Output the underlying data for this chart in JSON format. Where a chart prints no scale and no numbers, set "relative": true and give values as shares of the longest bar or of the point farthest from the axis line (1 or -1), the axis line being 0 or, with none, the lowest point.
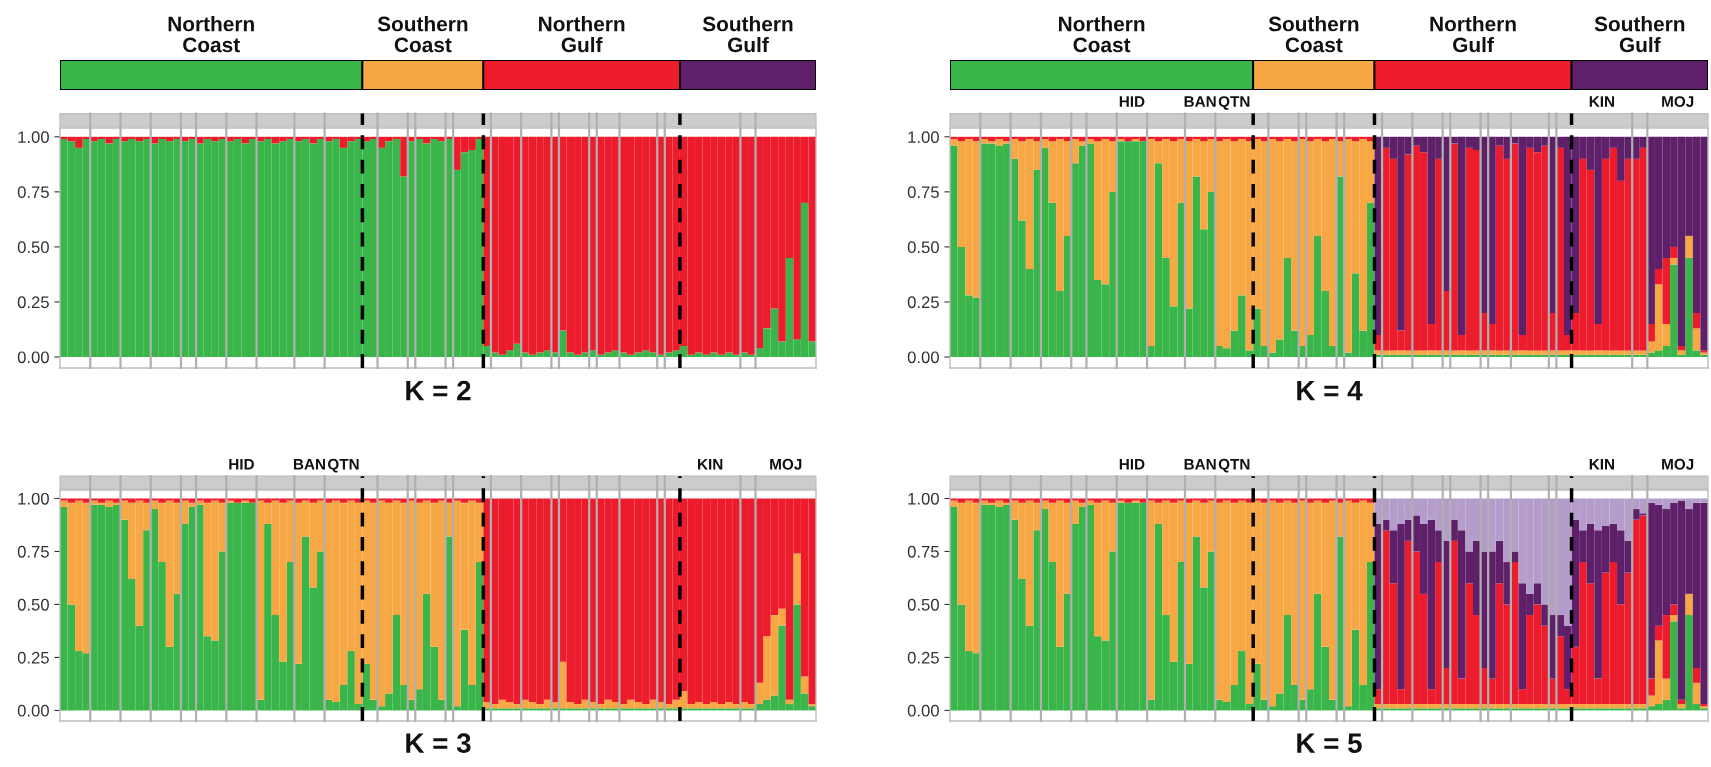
{
  "chart_data": [
    {
      "type": "bar",
      "orientation": "horizontal",
      "stacked": true,
      "relative": true,
      "tick_labels": false,
      "categories": [
        null
      ],
      "series": [
        {
          "name": "Northern\nCoast",
          "color": "#39b54a",
          "values": [
            0.4
          ]
        },
        {
          "name": "Southern\nCoast",
          "color": "#f7a743",
          "values": [
            0.16
          ]
        },
        {
          "name": "Northern\nGulf",
          "color": "#ec1c2d",
          "values": [
            0.26
          ]
        },
        {
          "name": "Southern\nGulf",
          "color": "#5e2069",
          "values": [
            0.18
          ]
        }
      ]
    },
    {
      "type": "bar",
      "orientation": "horizontal",
      "stacked": true,
      "relative": true,
      "tick_labels": false,
      "categories": [
        null
      ],
      "series": [
        {
          "name": "Northern\nCoast",
          "color": "#39b54a",
          "values": [
            0.4
          ]
        },
        {
          "name": "Southern\nCoast",
          "color": "#f7a743",
          "values": [
            0.16
          ]
        },
        {
          "name": "Northern\nGulf",
          "color": "#ec1c2d",
          "values": [
            0.26
          ]
        },
        {
          "name": "Southern\nGulf",
          "color": "#5e2069",
          "values": [
            0.18
          ]
        }
      ]
    },
    {
      "type": "bar",
      "stacked": true,
      "title": "K = 2",
      "tick_labels": "y",
      "ylim": [
        -0.05,
        1.04
      ],
      "yticks": [
        {
          "value": 0,
          "label": "0.00"
        },
        {
          "value": 0.25,
          "label": "0.25"
        },
        {
          "value": 0.5,
          "label": "0.50"
        },
        {
          "value": 0.75,
          "label": "0.75"
        },
        {
          "value": 1,
          "label": "1.00"
        }
      ],
      "categories": [
        null,
        null,
        null,
        null,
        null,
        null,
        null,
        null,
        null,
        null,
        null,
        null,
        null,
        null,
        null,
        null,
        null,
        null,
        null,
        null,
        null,
        null,
        null,
        null,
        null,
        null,
        null,
        null,
        null,
        null,
        null,
        null,
        null,
        null,
        null,
        null,
        null,
        null,
        null,
        null,
        null,
        null,
        null,
        null,
        null,
        null,
        null,
        null,
        null,
        null,
        null,
        null,
        null,
        null,
        null,
        null,
        null,
        null,
        null,
        null,
        null,
        null,
        null,
        null,
        null,
        null,
        null,
        null,
        null,
        null,
        null,
        null,
        null,
        null,
        null,
        null,
        null,
        null,
        null,
        null,
        null,
        null,
        null,
        null,
        null,
        null,
        null,
        null,
        null,
        null,
        null,
        null,
        null,
        null,
        null,
        null,
        null,
        null,
        null,
        null
      ],
      "series": [
        {
          "color": "#39b54a",
          "values": [
            0.99,
            0.98,
            0.95,
            0.99,
            0.98,
            0.99,
            0.97,
            0.99,
            0.98,
            0.99,
            0.98,
            0.99,
            0.97,
            0.99,
            0.98,
            0.99,
            0.98,
            0.99,
            0.97,
            0.99,
            0.98,
            0.99,
            0.98,
            0.99,
            0.97,
            0.99,
            0.98,
            0.99,
            0.97,
            0.98,
            0.99,
            0.98,
            0.99,
            0.97,
            0.99,
            0.98,
            0.99,
            0.95,
            0.98,
            0.99,
            0.98,
            0.99,
            0.95,
            0.98,
            0.99,
            0.82,
            0.98,
            0.99,
            0.97,
            0.99,
            0.98,
            0.99,
            0.85,
            0.93,
            0.94,
            0.99,
            0.05,
            0.02,
            0.01,
            0.03,
            0.06,
            0.02,
            0.01,
            0.02,
            0.03,
            0.02,
            0.12,
            0.02,
            0.01,
            0.02,
            0.03,
            0.01,
            0.02,
            0.03,
            0.02,
            0.01,
            0.02,
            0.03,
            0.02,
            0.01,
            0.02,
            0.03,
            0.05,
            0.01,
            0.02,
            0.01,
            0.02,
            0.01,
            0.02,
            0.01,
            0.02,
            0.01,
            0.04,
            0.13,
            0.22,
            0.07,
            0.45,
            0.08,
            0.7,
            0.07
          ]
        },
        {
          "color": "#ec1c2d",
          "values": [
            0.01,
            0.02,
            0.05,
            0.01,
            0.02,
            0.01,
            0.03,
            0.01,
            0.02,
            0.01,
            0.02,
            0.01,
            0.03,
            0.01,
            0.02,
            0.01,
            0.02,
            0.01,
            0.03,
            0.01,
            0.02,
            0.01,
            0.02,
            0.01,
            0.03,
            0.01,
            0.02,
            0.01,
            0.03,
            0.02,
            0.01,
            0.02,
            0.01,
            0.03,
            0.01,
            0.02,
            0.01,
            0.05,
            0.02,
            0.01,
            0.02,
            0.01,
            0.05,
            0.02,
            0.01,
            0.18,
            0.02,
            0.01,
            0.03,
            0.01,
            0.02,
            0.01,
            0.15,
            0.07,
            0.06,
            0.01,
            0.95,
            0.98,
            0.99,
            0.97,
            0.94,
            0.98,
            0.99,
            0.98,
            0.97,
            0.98,
            0.88,
            0.98,
            0.99,
            0.98,
            0.97,
            0.99,
            0.98,
            0.97,
            0.98,
            0.99,
            0.98,
            0.97,
            0.98,
            0.99,
            0.98,
            0.97,
            0.95,
            0.99,
            0.98,
            0.99,
            0.98,
            0.99,
            0.98,
            0.99,
            0.98,
            0.99,
            0.96,
            0.87,
            0.78,
            0.93,
            0.55,
            0.92,
            0.3,
            0.93
          ]
        }
      ]
    },
    {
      "type": "bar",
      "stacked": true,
      "title": "K = 4",
      "tick_labels": "y",
      "ylim": [
        -0.05,
        1.04
      ],
      "yticks": [
        {
          "value": 0,
          "label": "0.00"
        },
        {
          "value": 0.25,
          "label": "0.25"
        },
        {
          "value": 0.5,
          "label": "0.50"
        },
        {
          "value": 0.75,
          "label": "0.75"
        },
        {
          "value": 1,
          "label": "1.00"
        }
      ],
      "categories": [
        null,
        null,
        null,
        null,
        null,
        null,
        null,
        null,
        null,
        null,
        null,
        null,
        null,
        null,
        null,
        null,
        null,
        null,
        null,
        null,
        null,
        null,
        null,
        null,
        null,
        null,
        null,
        null,
        null,
        null,
        null,
        null,
        null,
        null,
        null,
        null,
        null,
        null,
        null,
        null,
        null,
        null,
        null,
        null,
        null,
        null,
        null,
        null,
        null,
        null,
        null,
        null,
        null,
        null,
        null,
        null,
        null,
        null,
        null,
        null,
        null,
        null,
        null,
        null,
        null,
        null,
        null,
        null,
        null,
        null,
        null,
        null,
        null,
        null,
        null,
        null,
        null,
        null,
        null,
        null,
        null,
        null,
        null,
        null,
        null,
        null,
        null,
        null,
        null,
        null,
        null,
        null,
        null,
        null,
        null,
        null,
        null,
        null,
        null,
        null
      ],
      "series": [
        {
          "color": "#39b54a",
          "values": [
            0.96,
            0.5,
            0.28,
            0.27,
            0.97,
            0.97,
            0.96,
            0.97,
            0.9,
            0.62,
            0.4,
            0.85,
            0.95,
            0.7,
            0.3,
            0.55,
            0.88,
            0.96,
            0.97,
            0.35,
            0.33,
            0.75,
            0.98,
            0.98,
            0.98,
            0.98,
            0.05,
            0.88,
            0.45,
            0.23,
            0.7,
            0.22,
            0.82,
            0.58,
            0.75,
            0.05,
            0.04,
            0.12,
            0.28,
            0.03,
            0.22,
            0.05,
            0.02,
            0.08,
            0.45,
            0.12,
            0.05,
            0.1,
            0.55,
            0.3,
            0.05,
            0.82,
            0.02,
            0.38,
            0.12,
            0.7,
            0.01,
            0.01,
            0.01,
            0.01,
            0.01,
            0.01,
            0.01,
            0.01,
            0.01,
            0.01,
            0.01,
            0.01,
            0.01,
            0.01,
            0.01,
            0.01,
            0.01,
            0.01,
            0.01,
            0.01,
            0.01,
            0.01,
            0.01,
            0.01,
            0.01,
            0.01,
            0.01,
            0.01,
            0.01,
            0.01,
            0.01,
            0.01,
            0.01,
            0.01,
            0.01,
            0.01,
            0.02,
            0.03,
            0.05,
            0.42,
            0.01,
            0.45,
            0.03,
            0.01
          ]
        },
        {
          "color": "#f7a743",
          "values": [
            0.03,
            0.48,
            0.71,
            0.71,
            0.02,
            0.01,
            0.03,
            0.01,
            0.09,
            0.36,
            0.59,
            0.13,
            0.04,
            0.28,
            0.69,
            0.43,
            0.11,
            0.02,
            0.02,
            0.63,
            0.66,
            0.23,
            0.01,
            0,
            0.01,
            0,
            0.94,
            0.1,
            0.54,
            0.75,
            0.29,
            0.76,
            0.17,
            0.4,
            0.24,
            0.93,
            0.95,
            0.86,
            0.71,
            0.95,
            0.77,
            0.93,
            0.97,
            0.9,
            0.54,
            0.86,
            0.94,
            0.88,
            0.44,
            0.68,
            0.94,
            0.16,
            0.97,
            0.6,
            0.87,
            0.28,
            0.02,
            0.02,
            0.02,
            0.02,
            0.02,
            0.02,
            0.02,
            0.02,
            0.02,
            0.02,
            0.02,
            0.02,
            0.02,
            0.02,
            0.02,
            0.02,
            0.02,
            0.02,
            0.02,
            0.02,
            0.02,
            0.02,
            0.02,
            0.02,
            0.02,
            0.02,
            0.02,
            0.02,
            0.02,
            0.02,
            0.02,
            0.02,
            0.02,
            0.02,
            0.02,
            0.02,
            0.05,
            0.3,
            0.1,
            0.03,
            0.02,
            0.1,
            0.1,
            0.01
          ]
        },
        {
          "color": "#ec1c2d",
          "values": [
            0.01,
            0.02,
            0.01,
            0.02,
            0.01,
            0.02,
            0.01,
            0.02,
            0.01,
            0.02,
            0.01,
            0.02,
            0.01,
            0.02,
            0.01,
            0.02,
            0.01,
            0.02,
            0.01,
            0.02,
            0.01,
            0.02,
            0.01,
            0.02,
            0.01,
            0.02,
            0.01,
            0.02,
            0.01,
            0.02,
            0.01,
            0.02,
            0.01,
            0.02,
            0.01,
            0.02,
            0.01,
            0.02,
            0.01,
            0.02,
            0.01,
            0.02,
            0.01,
            0.02,
            0.01,
            0.02,
            0.01,
            0.02,
            0.01,
            0.02,
            0.01,
            0.02,
            0.01,
            0.02,
            0.01,
            0.02,
            0.07,
            0.92,
            0.87,
            0.09,
            0.89,
            0.93,
            0.9,
            0.12,
            0.87,
            0.27,
            0.94,
            0.07,
            0.92,
            0.91,
            0.17,
            0.12,
            0.93,
            0.87,
            0.94,
            0.07,
            0.92,
            0.9,
            0.93,
            0.17,
            0.92,
            0.07,
            0.17,
            0.87,
            0.82,
            0.12,
            0.87,
            0.92,
            0.77,
            0.87,
            0.87,
            0.92,
            0.08,
            0.07,
            0.3,
            0.05,
            0.02,
            0,
            0.07,
            0.01
          ]
        },
        {
          "color": "#5e2069",
          "values": [
            0,
            0,
            0,
            0,
            0,
            0,
            0,
            0,
            0,
            0,
            0,
            0,
            0,
            0,
            0,
            0,
            0,
            0,
            0,
            0,
            0,
            0,
            0,
            0,
            0,
            0,
            0,
            0,
            0,
            0,
            0,
            0,
            0,
            0,
            0,
            0,
            0,
            0,
            0,
            0,
            0,
            0,
            0,
            0,
            0,
            0,
            0,
            0,
            0,
            0,
            0,
            0,
            0,
            0,
            0,
            0,
            0.9,
            0.05,
            0.1,
            0.88,
            0.08,
            0.04,
            0.07,
            0.85,
            0.1,
            0.7,
            0.03,
            0.9,
            0.05,
            0.06,
            0.8,
            0.85,
            0.04,
            0.1,
            0.03,
            0.9,
            0.05,
            0.07,
            0.04,
            0.8,
            0.05,
            0.9,
            0.8,
            0.1,
            0.15,
            0.85,
            0.1,
            0.05,
            0.2,
            0.1,
            0.1,
            0.05,
            0.85,
            0.6,
            0.55,
            0.5,
            0.95,
            0.45,
            0.8,
            0.97
          ]
        }
      ],
      "annotations": [
        "HID",
        "BAN",
        "QTN",
        "KIN",
        "MOJ"
      ]
    },
    {
      "type": "bar",
      "stacked": true,
      "title": "K = 3",
      "tick_labels": "y",
      "ylim": [
        -0.05,
        1.04
      ],
      "yticks": [
        {
          "value": 0,
          "label": "0.00"
        },
        {
          "value": 0.25,
          "label": "0.25"
        },
        {
          "value": 0.5,
          "label": "0.50"
        },
        {
          "value": 0.75,
          "label": "0.75"
        },
        {
          "value": 1,
          "label": "1.00"
        }
      ],
      "categories": [
        null,
        null,
        null,
        null,
        null,
        null,
        null,
        null,
        null,
        null,
        null,
        null,
        null,
        null,
        null,
        null,
        null,
        null,
        null,
        null,
        null,
        null,
        null,
        null,
        null,
        null,
        null,
        null,
        null,
        null,
        null,
        null,
        null,
        null,
        null,
        null,
        null,
        null,
        null,
        null,
        null,
        null,
        null,
        null,
        null,
        null,
        null,
        null,
        null,
        null,
        null,
        null,
        null,
        null,
        null,
        null,
        null,
        null,
        null,
        null,
        null,
        null,
        null,
        null,
        null,
        null,
        null,
        null,
        null,
        null,
        null,
        null,
        null,
        null,
        null,
        null,
        null,
        null,
        null,
        null,
        null,
        null,
        null,
        null,
        null,
        null,
        null,
        null,
        null,
        null,
        null,
        null,
        null,
        null,
        null,
        null,
        null,
        null,
        null,
        null
      ],
      "series": [
        {
          "color": "#39b54a",
          "values": [
            0.96,
            0.5,
            0.28,
            0.27,
            0.97,
            0.97,
            0.96,
            0.97,
            0.9,
            0.62,
            0.4,
            0.85,
            0.95,
            0.7,
            0.3,
            0.55,
            0.88,
            0.96,
            0.97,
            0.35,
            0.33,
            0.75,
            0.98,
            0.98,
            0.98,
            0.98,
            0.05,
            0.88,
            0.45,
            0.23,
            0.7,
            0.22,
            0.82,
            0.58,
            0.75,
            0.05,
            0.04,
            0.12,
            0.28,
            0.03,
            0.22,
            0.05,
            0.02,
            0.08,
            0.45,
            0.12,
            0.05,
            0.1,
            0.55,
            0.3,
            0.05,
            0.82,
            0.02,
            0.38,
            0.12,
            0.7,
            0.01,
            0.01,
            0.01,
            0.01,
            0.01,
            0.01,
            0.01,
            0.01,
            0.01,
            0.01,
            0.01,
            0.01,
            0.01,
            0.01,
            0.01,
            0.01,
            0.01,
            0.01,
            0.01,
            0.01,
            0.01,
            0.01,
            0.01,
            0.01,
            0.01,
            0.01,
            0.01,
            0.01,
            0.01,
            0.01,
            0.01,
            0.01,
            0.01,
            0.01,
            0.01,
            0.01,
            0.03,
            0.05,
            0.07,
            0.4,
            0.03,
            0.5,
            0.08,
            0.02
          ]
        },
        {
          "color": "#f7a743",
          "values": [
            0.03,
            0.48,
            0.71,
            0.71,
            0.02,
            0.01,
            0.03,
            0.01,
            0.09,
            0.36,
            0.59,
            0.13,
            0.04,
            0.28,
            0.69,
            0.43,
            0.11,
            0.02,
            0.02,
            0.63,
            0.66,
            0.23,
            0.01,
            0,
            0.01,
            0,
            0.94,
            0.1,
            0.54,
            0.75,
            0.29,
            0.76,
            0.17,
            0.4,
            0.24,
            0.93,
            0.95,
            0.86,
            0.71,
            0.95,
            0.77,
            0.93,
            0.97,
            0.9,
            0.54,
            0.86,
            0.94,
            0.88,
            0.44,
            0.68,
            0.94,
            0.16,
            0.97,
            0.6,
            0.87,
            0.28,
            0.03,
            0.02,
            0.04,
            0.03,
            0.02,
            0.04,
            0.03,
            0.02,
            0.04,
            0.03,
            0.22,
            0.03,
            0.02,
            0.04,
            0.03,
            0.02,
            0.04,
            0.03,
            0.02,
            0.04,
            0.03,
            0.02,
            0.04,
            0.03,
            0.02,
            0.04,
            0.08,
            0.02,
            0.03,
            0.02,
            0.03,
            0.02,
            0.03,
            0.02,
            0.03,
            0.02,
            0.1,
            0.3,
            0.38,
            0.08,
            0.02,
            0.24,
            0.08,
            0.01
          ]
        },
        {
          "color": "#ec1c2d",
          "values": [
            0.01,
            0.02,
            0.01,
            0.02,
            0.01,
            0.02,
            0.01,
            0.02,
            0.01,
            0.02,
            0.01,
            0.02,
            0.01,
            0.02,
            0.01,
            0.02,
            0.01,
            0.02,
            0.01,
            0.02,
            0.01,
            0.02,
            0.01,
            0.02,
            0.01,
            0.02,
            0.01,
            0.02,
            0.01,
            0.02,
            0.01,
            0.02,
            0.01,
            0.02,
            0.01,
            0.02,
            0.01,
            0.02,
            0.01,
            0.02,
            0.01,
            0.02,
            0.01,
            0.02,
            0.01,
            0.02,
            0.01,
            0.02,
            0.01,
            0.02,
            0.01,
            0.02,
            0.01,
            0.02,
            0.01,
            0.02,
            0.96,
            0.97,
            0.95,
            0.96,
            0.97,
            0.95,
            0.96,
            0.97,
            0.95,
            0.96,
            0.77,
            0.96,
            0.97,
            0.95,
            0.96,
            0.97,
            0.95,
            0.96,
            0.97,
            0.95,
            0.96,
            0.97,
            0.95,
            0.96,
            0.97,
            0.95,
            0.91,
            0.97,
            0.96,
            0.97,
            0.96,
            0.97,
            0.96,
            0.97,
            0.96,
            0.97,
            0.87,
            0.65,
            0.55,
            0.52,
            0.95,
            0.26,
            0.84,
            0.97
          ]
        }
      ],
      "annotations": [
        "HID",
        "BAN",
        "QTN",
        "KIN",
        "MOJ"
      ]
    },
    {
      "type": "bar",
      "stacked": true,
      "title": "K = 5",
      "tick_labels": "y",
      "ylim": [
        -0.05,
        1.04
      ],
      "yticks": [
        {
          "value": 0,
          "label": "0.00"
        },
        {
          "value": 0.25,
          "label": "0.25"
        },
        {
          "value": 0.5,
          "label": "0.50"
        },
        {
          "value": 0.75,
          "label": "0.75"
        },
        {
          "value": 1,
          "label": "1.00"
        }
      ],
      "categories": [
        null,
        null,
        null,
        null,
        null,
        null,
        null,
        null,
        null,
        null,
        null,
        null,
        null,
        null,
        null,
        null,
        null,
        null,
        null,
        null,
        null,
        null,
        null,
        null,
        null,
        null,
        null,
        null,
        null,
        null,
        null,
        null,
        null,
        null,
        null,
        null,
        null,
        null,
        null,
        null,
        null,
        null,
        null,
        null,
        null,
        null,
        null,
        null,
        null,
        null,
        null,
        null,
        null,
        null,
        null,
        null,
        null,
        null,
        null,
        null,
        null,
        null,
        null,
        null,
        null,
        null,
        null,
        null,
        null,
        null,
        null,
        null,
        null,
        null,
        null,
        null,
        null,
        null,
        null,
        null,
        null,
        null,
        null,
        null,
        null,
        null,
        null,
        null,
        null,
        null,
        null,
        null,
        null,
        null,
        null,
        null,
        null,
        null,
        null,
        null
      ],
      "series": [
        {
          "color": "#39b54a",
          "values": [
            0.96,
            0.5,
            0.28,
            0.27,
            0.97,
            0.97,
            0.96,
            0.97,
            0.9,
            0.62,
            0.4,
            0.85,
            0.95,
            0.7,
            0.3,
            0.55,
            0.88,
            0.96,
            0.97,
            0.35,
            0.33,
            0.75,
            0.98,
            0.98,
            0.98,
            0.98,
            0.05,
            0.88,
            0.45,
            0.23,
            0.7,
            0.22,
            0.82,
            0.58,
            0.75,
            0.05,
            0.04,
            0.12,
            0.28,
            0.03,
            0.22,
            0.05,
            0.02,
            0.08,
            0.45,
            0.12,
            0.05,
            0.1,
            0.55,
            0.3,
            0.05,
            0.82,
            0.02,
            0.38,
            0.12,
            0.7,
            0.01,
            0.01,
            0.01,
            0.01,
            0.01,
            0.01,
            0.01,
            0.01,
            0.01,
            0.01,
            0.01,
            0.01,
            0.01,
            0.01,
            0.01,
            0.01,
            0.01,
            0.01,
            0.01,
            0.01,
            0.01,
            0.01,
            0.01,
            0.01,
            0.01,
            0.01,
            0.01,
            0.01,
            0.01,
            0.01,
            0.01,
            0.01,
            0.01,
            0.01,
            0.01,
            0.01,
            0.02,
            0.03,
            0.05,
            0.42,
            0.01,
            0.45,
            0.03,
            0.01
          ]
        },
        {
          "color": "#f7a743",
          "values": [
            0.03,
            0.48,
            0.71,
            0.71,
            0.02,
            0.01,
            0.03,
            0.01,
            0.09,
            0.36,
            0.59,
            0.13,
            0.04,
            0.28,
            0.69,
            0.43,
            0.11,
            0.02,
            0.02,
            0.63,
            0.66,
            0.23,
            0.01,
            0,
            0.01,
            0,
            0.94,
            0.1,
            0.54,
            0.75,
            0.29,
            0.76,
            0.17,
            0.4,
            0.24,
            0.93,
            0.95,
            0.86,
            0.71,
            0.95,
            0.77,
            0.93,
            0.97,
            0.9,
            0.54,
            0.86,
            0.94,
            0.88,
            0.44,
            0.68,
            0.94,
            0.16,
            0.97,
            0.6,
            0.87,
            0.28,
            0.02,
            0.02,
            0.02,
            0.02,
            0.02,
            0.02,
            0.02,
            0.02,
            0.02,
            0.02,
            0.02,
            0.02,
            0.02,
            0.02,
            0.02,
            0.02,
            0.02,
            0.02,
            0.02,
            0.02,
            0.02,
            0.02,
            0.02,
            0.02,
            0.02,
            0.02,
            0.02,
            0.02,
            0.02,
            0.02,
            0.02,
            0.02,
            0.02,
            0.02,
            0.02,
            0.02,
            0.05,
            0.3,
            0.1,
            0.03,
            0.02,
            0.1,
            0.1,
            0.01
          ]
        },
        {
          "color": "#ec1c2d",
          "values": [
            0.01,
            0.02,
            0.01,
            0.02,
            0.01,
            0.02,
            0.01,
            0.02,
            0.01,
            0.02,
            0.01,
            0.02,
            0.01,
            0.02,
            0.01,
            0.02,
            0.01,
            0.02,
            0.01,
            0.02,
            0.01,
            0.02,
            0.01,
            0.02,
            0.01,
            0.02,
            0.01,
            0.02,
            0.01,
            0.02,
            0.01,
            0.02,
            0.01,
            0.02,
            0.01,
            0.02,
            0.01,
            0.02,
            0.01,
            0.02,
            0.01,
            0.02,
            0.01,
            0.02,
            0.01,
            0.02,
            0.01,
            0.02,
            0.01,
            0.02,
            0.01,
            0.02,
            0.01,
            0.02,
            0.01,
            0.02,
            0.07,
            0.82,
            0.57,
            0.07,
            0.77,
            0.72,
            0.52,
            0.07,
            0.67,
            0.17,
            0.77,
            0.12,
            0.57,
            0.42,
            0.17,
            0.12,
            0.57,
            0.47,
            0.67,
            0.07,
            0.42,
            0.47,
            0.37,
            0.12,
            0.32,
            0.07,
            0.27,
            0.67,
            0.57,
            0.12,
            0.62,
            0.67,
            0.47,
            0.62,
            0.87,
            0.89,
            0.08,
            0.07,
            0.3,
            0.05,
            0.02,
            0,
            0.07,
            0.01
          ]
        },
        {
          "color": "#5e2069",
          "values": [
            0,
            0,
            0,
            0,
            0,
            0,
            0,
            0,
            0,
            0,
            0,
            0,
            0,
            0,
            0,
            0,
            0,
            0,
            0,
            0,
            0,
            0,
            0,
            0,
            0,
            0,
            0,
            0,
            0,
            0,
            0,
            0,
            0,
            0,
            0,
            0,
            0,
            0,
            0,
            0,
            0,
            0,
            0,
            0,
            0,
            0,
            0,
            0,
            0,
            0,
            0,
            0,
            0,
            0,
            0,
            0,
            0.78,
            0.05,
            0.25,
            0.78,
            0.1,
            0.17,
            0.33,
            0.8,
            0.15,
            0.6,
            0.1,
            0.7,
            0.15,
            0.35,
            0.55,
            0.6,
            0.2,
            0.2,
            0.05,
            0.5,
            0.1,
            0.1,
            0.1,
            0.3,
            0.1,
            0.3,
            0.6,
            0.15,
            0.28,
            0.7,
            0.22,
            0.18,
            0.35,
            0.15,
            0.05,
            0.01,
            0.83,
            0.57,
            0.5,
            0.48,
            0.94,
            0.4,
            0.78,
            0.95
          ]
        },
        {
          "color": "#b49ccb",
          "values": [
            0,
            0,
            0,
            0,
            0,
            0,
            0,
            0,
            0,
            0,
            0,
            0,
            0,
            0,
            0,
            0,
            0,
            0,
            0,
            0,
            0,
            0,
            0,
            0,
            0,
            0,
            0,
            0,
            0,
            0,
            0,
            0,
            0,
            0,
            0,
            0,
            0,
            0,
            0,
            0,
            0,
            0,
            0,
            0,
            0,
            0,
            0,
            0,
            0,
            0,
            0,
            0,
            0,
            0,
            0,
            0,
            0.12,
            0.1,
            0.15,
            0.12,
            0.1,
            0.08,
            0.12,
            0.1,
            0.15,
            0.2,
            0.1,
            0.15,
            0.25,
            0.2,
            0.25,
            0.25,
            0.2,
            0.3,
            0.25,
            0.4,
            0.45,
            0.4,
            0.5,
            0.55,
            0.55,
            0.6,
            0.1,
            0.15,
            0.12,
            0.15,
            0.13,
            0.12,
            0.15,
            0.2,
            0.05,
            0.07,
            0.02,
            0.03,
            0.05,
            0.02,
            0.01,
            0.05,
            0.02,
            0.02
          ]
        }
      ],
      "annotations": [
        "HID",
        "BAN",
        "QTN",
        "KIN",
        "MOJ"
      ]
    }
  ]
}
